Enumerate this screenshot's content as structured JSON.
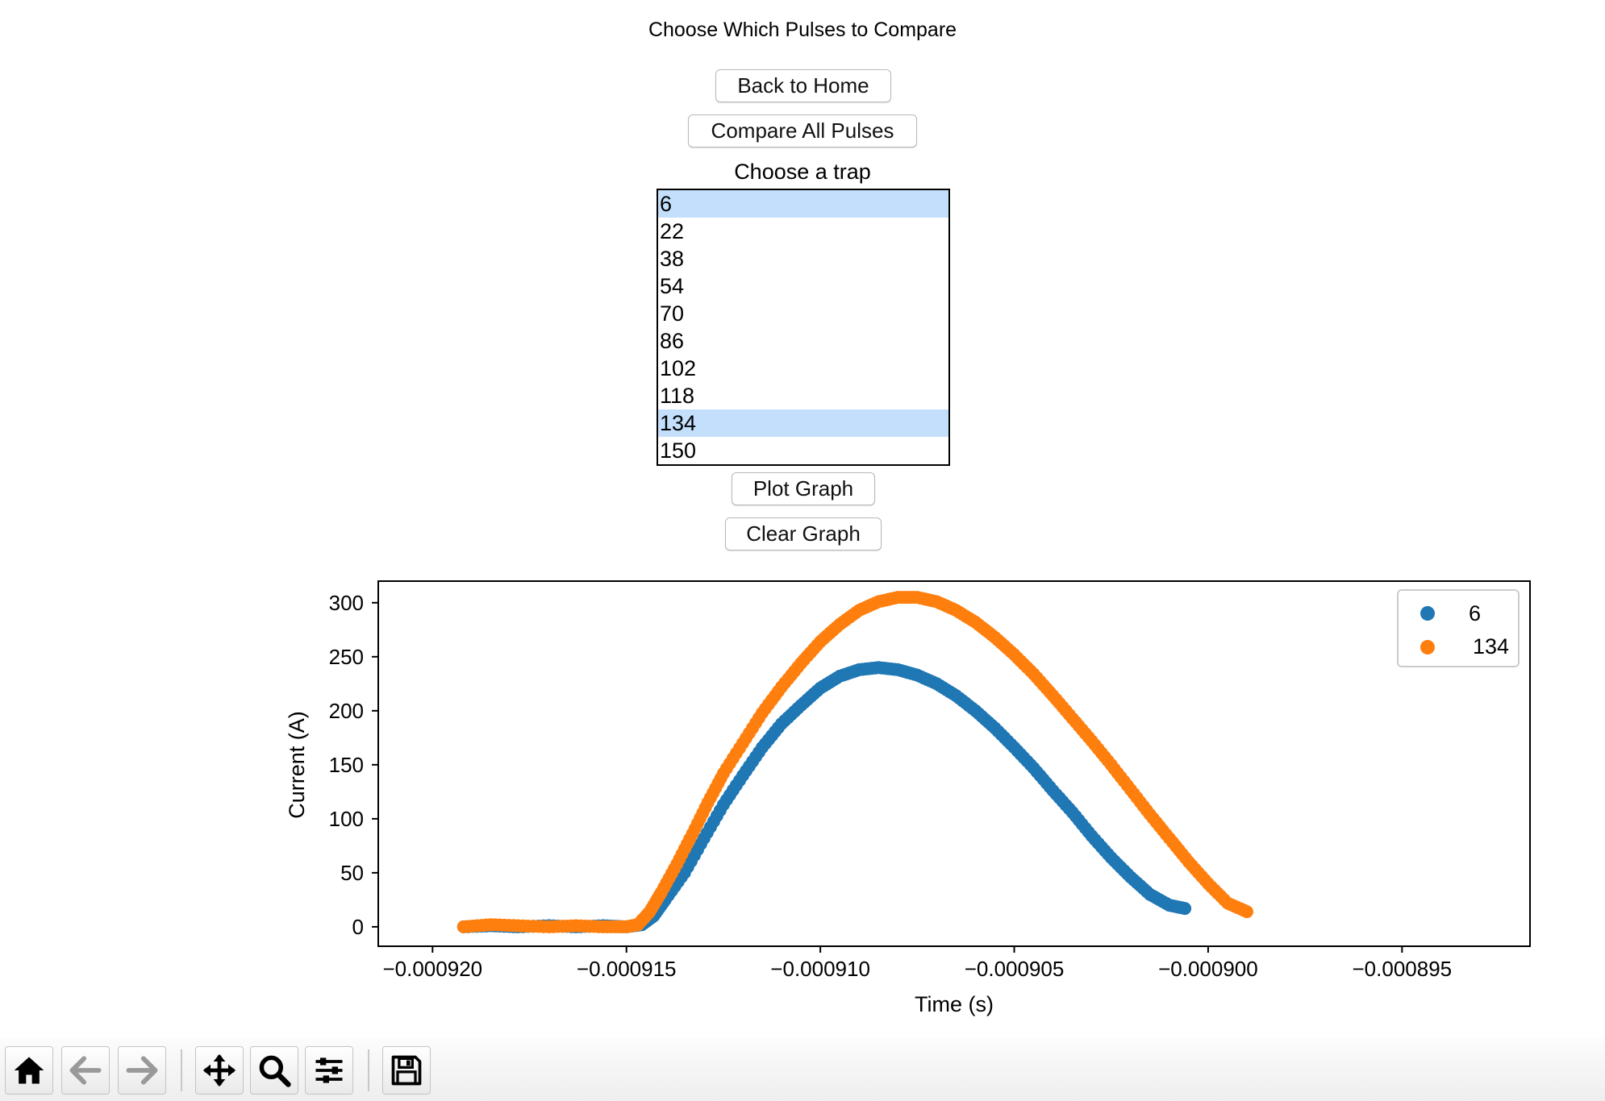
{
  "header": {
    "title": "Choose Which Pulses to Compare"
  },
  "buttons": {
    "back_home": "Back to Home",
    "compare_all": "Compare All Pulses",
    "plot_graph": "Plot Graph",
    "clear_graph": "Clear Graph"
  },
  "trap": {
    "label": "Choose a trap",
    "options": [
      {
        "label": "6",
        "selected": true
      },
      {
        "label": "22",
        "selected": false
      },
      {
        "label": "38",
        "selected": false
      },
      {
        "label": "54",
        "selected": false
      },
      {
        "label": "70",
        "selected": false
      },
      {
        "label": "86",
        "selected": false
      },
      {
        "label": "102",
        "selected": false
      },
      {
        "label": "118",
        "selected": false
      },
      {
        "label": "134",
        "selected": true
      },
      {
        "label": "150",
        "selected": false
      }
    ]
  },
  "chart_data": {
    "type": "scatter",
    "title": "",
    "xlabel": "Time (s)",
    "ylabel": "Current (A)",
    "xlim": [
      -0.0009214,
      -0.0008917
    ],
    "ylim": [
      -18,
      320
    ],
    "xticks": [
      "−0.000920",
      "−0.000915",
      "−0.000910",
      "−0.000905",
      "−0.000900",
      "−0.000895"
    ],
    "xtick_values": [
      -0.00092,
      -0.000915,
      -0.00091,
      -0.000905,
      -0.0009,
      -0.000895
    ],
    "yticks": [
      "0",
      "50",
      "100",
      "150",
      "200",
      "250",
      "300"
    ],
    "ytick_values": [
      0,
      50,
      100,
      150,
      200,
      250,
      300
    ],
    "grid": false,
    "legend_position": "top-right",
    "series": [
      {
        "name": "6",
        "color": "#1f77b4",
        "points": [
          [
            -0.0009192,
            0
          ],
          [
            -0.0009185,
            1
          ],
          [
            -0.0009178,
            0
          ],
          [
            -0.000917,
            1
          ],
          [
            -0.0009163,
            0
          ],
          [
            -0.0009156,
            1
          ],
          [
            -0.000915,
            0
          ],
          [
            -0.0009146,
            2
          ],
          [
            -0.0009143,
            10
          ],
          [
            -0.000914,
            25
          ],
          [
            -0.0009135,
            50
          ],
          [
            -0.000913,
            82
          ],
          [
            -0.0009125,
            113
          ],
          [
            -0.000912,
            140
          ],
          [
            -0.0009115,
            166
          ],
          [
            -0.000911,
            188
          ],
          [
            -0.0009105,
            205
          ],
          [
            -0.00091,
            221
          ],
          [
            -0.0009095,
            232
          ],
          [
            -0.000909,
            238
          ],
          [
            -0.0009085,
            240
          ],
          [
            -0.000908,
            238
          ],
          [
            -0.0009075,
            233
          ],
          [
            -0.000907,
            225
          ],
          [
            -0.0009065,
            214
          ],
          [
            -0.000906,
            200
          ],
          [
            -0.0009055,
            184
          ],
          [
            -0.000905,
            166
          ],
          [
            -0.0009045,
            147
          ],
          [
            -0.000904,
            126
          ],
          [
            -0.0009035,
            106
          ],
          [
            -0.000903,
            84
          ],
          [
            -0.0009025,
            64
          ],
          [
            -0.000902,
            46
          ],
          [
            -0.0009015,
            30
          ],
          [
            -0.000901,
            20
          ],
          [
            -0.0009006,
            17
          ]
        ]
      },
      {
        "name": "134",
        "color": "#ff7f0e",
        "points": [
          [
            -0.0009192,
            0
          ],
          [
            -0.0009185,
            2
          ],
          [
            -0.0009178,
            1
          ],
          [
            -0.000917,
            0
          ],
          [
            -0.0009163,
            1
          ],
          [
            -0.0009156,
            0
          ],
          [
            -0.000915,
            0
          ],
          [
            -0.0009147,
            2
          ],
          [
            -0.0009144,
            14
          ],
          [
            -0.0009141,
            32
          ],
          [
            -0.0009137,
            58
          ],
          [
            -0.0009133,
            86
          ],
          [
            -0.0009129,
            115
          ],
          [
            -0.0009125,
            142
          ],
          [
            -0.000912,
            170
          ],
          [
            -0.0009115,
            198
          ],
          [
            -0.000911,
            222
          ],
          [
            -0.0009105,
            244
          ],
          [
            -0.00091,
            264
          ],
          [
            -0.0009095,
            280
          ],
          [
            -0.000909,
            293
          ],
          [
            -0.0009085,
            301
          ],
          [
            -0.000908,
            305
          ],
          [
            -0.0009075,
            305
          ],
          [
            -0.000907,
            301
          ],
          [
            -0.0009065,
            293
          ],
          [
            -0.000906,
            282
          ],
          [
            -0.0009055,
            268
          ],
          [
            -0.000905,
            252
          ],
          [
            -0.0009045,
            234
          ],
          [
            -0.000904,
            214
          ],
          [
            -0.0009035,
            193
          ],
          [
            -0.000903,
            172
          ],
          [
            -0.0009025,
            150
          ],
          [
            -0.000902,
            127
          ],
          [
            -0.0009015,
            104
          ],
          [
            -0.000901,
            82
          ],
          [
            -0.0009005,
            60
          ],
          [
            -0.0009,
            40
          ],
          [
            -0.0008995,
            22
          ],
          [
            -0.000899,
            14
          ]
        ]
      }
    ]
  },
  "toolbar": {
    "tools": [
      {
        "icon": "home-icon"
      },
      {
        "icon": "back-arrow-icon"
      },
      {
        "icon": "forward-arrow-icon"
      },
      {
        "icon": "pan-icon"
      },
      {
        "icon": "zoom-icon"
      },
      {
        "icon": "subplots-icon"
      },
      {
        "icon": "save-icon"
      }
    ]
  }
}
